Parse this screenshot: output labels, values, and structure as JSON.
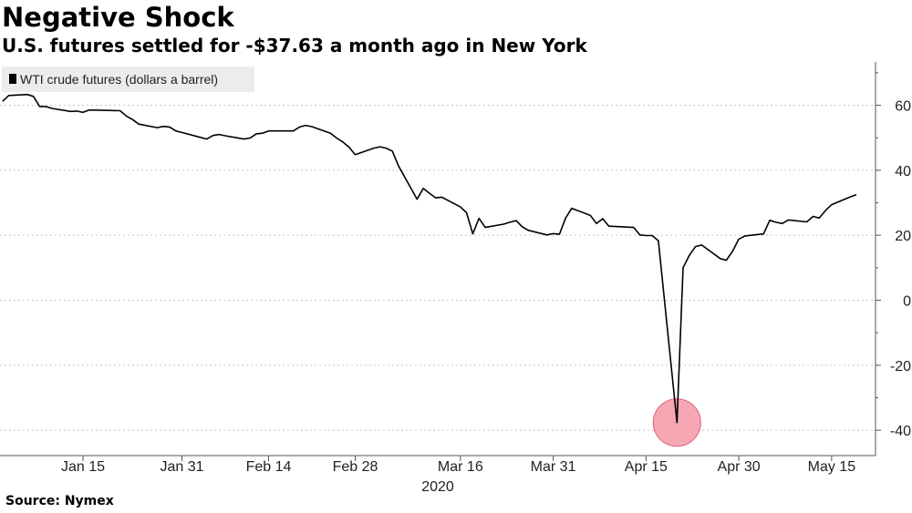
{
  "header": {
    "title": "Negative Shock",
    "subtitle": "U.S. futures settled for -$37.63 a month ago in New York"
  },
  "footer": {
    "source": "Source: Nymex"
  },
  "colors": {
    "line": "#000000",
    "grid": "#c8c8c8",
    "legend_bg": "#ececec",
    "marker": "#f48a9a"
  },
  "chart_data": {
    "type": "line",
    "title": "Negative Shock",
    "subtitle": "U.S. futures settled for -$37.63 a month ago in New York",
    "xlabel": "2020",
    "ylabel": "",
    "ylim": [
      -45,
      73
    ],
    "y_ticks": [
      -40,
      -20,
      0,
      20,
      40,
      60
    ],
    "y_axis_side": "right",
    "grid": "horizontal dotted",
    "legend": {
      "position": "top-left",
      "entries": [
        "WTI crude futures (dollars a barrel)"
      ]
    },
    "x_ticks": [
      {
        "date": "2020-01-15",
        "label": "Jan 15"
      },
      {
        "date": "2020-01-31",
        "label": "Jan 31"
      },
      {
        "date": "2020-02-14",
        "label": "Feb 14"
      },
      {
        "date": "2020-02-28",
        "label": "Feb 28"
      },
      {
        "date": "2020-03-16",
        "label": "Mar 16"
      },
      {
        "date": "2020-03-31",
        "label": "Mar 31"
      },
      {
        "date": "2020-04-15",
        "label": "Apr 15"
      },
      {
        "date": "2020-04-30",
        "label": "Apr 30"
      },
      {
        "date": "2020-05-15",
        "label": "May 15"
      }
    ],
    "highlight": {
      "date": "2020-04-20",
      "value": -37.63
    },
    "series": [
      {
        "name": "WTI crude futures (dollars a barrel)",
        "points": [
          [
            "2020-01-02",
            61.2
          ],
          [
            "2020-01-03",
            63.0
          ],
          [
            "2020-01-06",
            63.3
          ],
          [
            "2020-01-07",
            62.7
          ],
          [
            "2020-01-08",
            59.6
          ],
          [
            "2020-01-09",
            59.6
          ],
          [
            "2020-01-10",
            59.0
          ],
          [
            "2020-01-13",
            58.1
          ],
          [
            "2020-01-14",
            58.2
          ],
          [
            "2020-01-15",
            57.8
          ],
          [
            "2020-01-16",
            58.5
          ],
          [
            "2020-01-17",
            58.5
          ],
          [
            "2020-01-21",
            58.3
          ],
          [
            "2020-01-22",
            56.7
          ],
          [
            "2020-01-23",
            55.6
          ],
          [
            "2020-01-24",
            54.2
          ],
          [
            "2020-01-27",
            53.1
          ],
          [
            "2020-01-28",
            53.5
          ],
          [
            "2020-01-29",
            53.3
          ],
          [
            "2020-01-30",
            52.1
          ],
          [
            "2020-01-31",
            51.6
          ],
          [
            "2020-02-03",
            50.1
          ],
          [
            "2020-02-04",
            49.6
          ],
          [
            "2020-02-05",
            50.7
          ],
          [
            "2020-02-06",
            51.0
          ],
          [
            "2020-02-07",
            50.6
          ],
          [
            "2020-02-10",
            49.6
          ],
          [
            "2020-02-11",
            49.9
          ],
          [
            "2020-02-12",
            51.2
          ],
          [
            "2020-02-13",
            51.4
          ],
          [
            "2020-02-14",
            52.1
          ],
          [
            "2020-02-18",
            52.1
          ],
          [
            "2020-02-19",
            53.3
          ],
          [
            "2020-02-20",
            53.8
          ],
          [
            "2020-02-21",
            53.4
          ],
          [
            "2020-02-24",
            51.4
          ],
          [
            "2020-02-25",
            49.9
          ],
          [
            "2020-02-26",
            48.7
          ],
          [
            "2020-02-27",
            47.1
          ],
          [
            "2020-02-28",
            44.8
          ],
          [
            "2020-03-02",
            46.8
          ],
          [
            "2020-03-03",
            47.2
          ],
          [
            "2020-03-04",
            46.8
          ],
          [
            "2020-03-05",
            45.9
          ],
          [
            "2020-03-06",
            41.3
          ],
          [
            "2020-03-09",
            31.1
          ],
          [
            "2020-03-10",
            34.4
          ],
          [
            "2020-03-11",
            32.9
          ],
          [
            "2020-03-12",
            31.5
          ],
          [
            "2020-03-13",
            31.7
          ],
          [
            "2020-03-16",
            28.7
          ],
          [
            "2020-03-17",
            26.9
          ],
          [
            "2020-03-18",
            20.4
          ],
          [
            "2020-03-19",
            25.2
          ],
          [
            "2020-03-20",
            22.4
          ],
          [
            "2020-03-23",
            23.4
          ],
          [
            "2020-03-24",
            24.0
          ],
          [
            "2020-03-25",
            24.5
          ],
          [
            "2020-03-26",
            22.6
          ],
          [
            "2020-03-27",
            21.5
          ],
          [
            "2020-03-30",
            20.1
          ],
          [
            "2020-03-31",
            20.5
          ],
          [
            "2020-04-01",
            20.3
          ],
          [
            "2020-04-02",
            25.3
          ],
          [
            "2020-04-03",
            28.3
          ],
          [
            "2020-04-06",
            26.1
          ],
          [
            "2020-04-07",
            23.6
          ],
          [
            "2020-04-08",
            25.1
          ],
          [
            "2020-04-09",
            22.8
          ],
          [
            "2020-04-13",
            22.4
          ],
          [
            "2020-04-14",
            20.1
          ],
          [
            "2020-04-15",
            19.9
          ],
          [
            "2020-04-16",
            19.9
          ],
          [
            "2020-04-17",
            18.3
          ],
          [
            "2020-04-20",
            -37.63
          ],
          [
            "2020-04-21",
            10.0
          ],
          [
            "2020-04-22",
            13.8
          ],
          [
            "2020-04-23",
            16.5
          ],
          [
            "2020-04-24",
            17.0
          ],
          [
            "2020-04-27",
            12.8
          ],
          [
            "2020-04-28",
            12.3
          ],
          [
            "2020-04-29",
            15.1
          ],
          [
            "2020-04-30",
            18.8
          ],
          [
            "2020-05-01",
            19.8
          ],
          [
            "2020-05-04",
            20.4
          ],
          [
            "2020-05-05",
            24.6
          ],
          [
            "2020-05-06",
            24.0
          ],
          [
            "2020-05-07",
            23.6
          ],
          [
            "2020-05-08",
            24.7
          ],
          [
            "2020-05-11",
            24.1
          ],
          [
            "2020-05-12",
            25.8
          ],
          [
            "2020-05-13",
            25.3
          ],
          [
            "2020-05-14",
            27.6
          ],
          [
            "2020-05-15",
            29.4
          ],
          [
            "2020-05-18",
            31.8
          ],
          [
            "2020-05-19",
            32.5
          ]
        ]
      }
    ]
  }
}
